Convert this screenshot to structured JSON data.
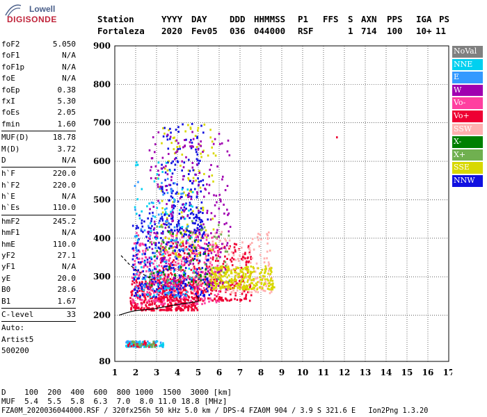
{
  "logo": {
    "top": "Lowell",
    "bottom": "DIGISONDE"
  },
  "header": {
    "labels": [
      "Station",
      "YYYY",
      "DAY",
      "DDD",
      "HHMMSS",
      "P1",
      "FFS",
      "S",
      "AXN",
      "PPS",
      "IGA",
      "PS"
    ],
    "values": [
      "Fortaleza",
      "2020",
      "Fev05",
      "036",
      "044000",
      "RSF",
      "",
      "1",
      "714",
      "100",
      "10+",
      "11"
    ]
  },
  "params": {
    "group1": [
      {
        "k": "foF2",
        "v": "5.050"
      },
      {
        "k": "foF1",
        "v": "N/A"
      },
      {
        "k": "foF1p",
        "v": "N/A"
      },
      {
        "k": "foE",
        "v": "N/A"
      },
      {
        "k": "foEp",
        "v": "0.38"
      },
      {
        "k": "fxI",
        "v": "5.30"
      },
      {
        "k": "foEs",
        "v": "2.05"
      },
      {
        "k": "fmin",
        "v": "1.60"
      }
    ],
    "group2": [
      {
        "k": "MUF(D)",
        "v": "18.78"
      },
      {
        "k": "M(D)",
        "v": "3.72"
      },
      {
        "k": "D",
        "v": "N/A"
      }
    ],
    "group3": [
      {
        "k": "h`F",
        "v": "220.0"
      },
      {
        "k": "h`F2",
        "v": "220.0"
      },
      {
        "k": "h`E",
        "v": "N/A"
      },
      {
        "k": "h`Es",
        "v": "110.0"
      }
    ],
    "group4": [
      {
        "k": "hmF2",
        "v": "245.2"
      },
      {
        "k": "hmF1",
        "v": "N/A"
      },
      {
        "k": "hmE",
        "v": "110.0"
      },
      {
        "k": "yF2",
        "v": "27.1"
      },
      {
        "k": "yF1",
        "v": "N/A"
      },
      {
        "k": "yE",
        "v": "20.0"
      },
      {
        "k": "B0",
        "v": "28.6"
      },
      {
        "k": "B1",
        "v": "1.67"
      }
    ],
    "group5": [
      {
        "k": "C-level",
        "v": "33"
      }
    ],
    "auto": [
      "Auto:",
      "Artist5",
      "500200"
    ]
  },
  "legend": [
    {
      "label": "NoVal",
      "color": "#808080"
    },
    {
      "label": "NNE",
      "color": "#00d0f0"
    },
    {
      "label": "E",
      "color": "#3399ff"
    },
    {
      "label": "W",
      "color": "#a000b0"
    },
    {
      "label": "Vo-",
      "color": "#ff3fa0"
    },
    {
      "label": "Vo+",
      "color": "#ee0033"
    },
    {
      "label": "SSW",
      "color": "#ffb0b0"
    },
    {
      "label": "X-",
      "color": "#008000"
    },
    {
      "label": "X+",
      "color": "#70b050"
    },
    {
      "label": "SSE",
      "color": "#d8d800"
    },
    {
      "label": "NNW",
      "color": "#1010e0"
    }
  ],
  "footer": {
    "d_line": "D    100  200  400  600  800 1000  1500  3000 [km]",
    "muf_line": "MUF  5.4  5.5  5.8  6.3  7.0  8.0 11.0 18.8 [MHz]",
    "file_line": "FZA0M_2020036044000.RSF / 320fx256h 50 kHz 5.0 km / DPS-4 FZA0M 904 / 3.9 S 321.6 E   Ion2Png 1.3.20"
  },
  "chart_data": {
    "type": "scatter",
    "title": "",
    "xlabel": "",
    "ylabel": "",
    "xlim": [
      1,
      17
    ],
    "ylim": [
      80,
      900
    ],
    "xticks": [
      1,
      2,
      3,
      4,
      5,
      6,
      7,
      8,
      9,
      10,
      11,
      12,
      13,
      14,
      15,
      16,
      17
    ],
    "yticks": [
      80,
      200,
      300,
      400,
      500,
      600,
      700,
      800,
      900
    ],
    "grid": true,
    "legend_position": "right",
    "clusters": [
      {
        "series": "Vo+",
        "x": [
          1.7,
          5.0
        ],
        "y": [
          215,
          300
        ],
        "count": 420
      },
      {
        "series": "Vo+",
        "x": [
          3.0,
          7.5
        ],
        "y": [
          240,
          390
        ],
        "count": 380
      },
      {
        "series": "Vo-",
        "x": [
          1.8,
          6.0
        ],
        "y": [
          230,
          420
        ],
        "count": 320
      },
      {
        "series": "SSW",
        "x": [
          3.5,
          8.5
        ],
        "y": [
          260,
          420
        ],
        "count": 220
      },
      {
        "series": "SSE",
        "x": [
          5.5,
          8.6
        ],
        "y": [
          270,
          330
        ],
        "count": 260
      },
      {
        "series": "SSE",
        "x": [
          3.0,
          5.8
        ],
        "y": [
          350,
          700
        ],
        "count": 120
      },
      {
        "series": "NNW",
        "x": [
          1.8,
          5.5
        ],
        "y": [
          250,
          470
        ],
        "count": 300
      },
      {
        "series": "NNW",
        "x": [
          3.2,
          5.2
        ],
        "y": [
          420,
          700
        ],
        "count": 160
      },
      {
        "series": "W",
        "x": [
          2.5,
          6.5
        ],
        "y": [
          270,
          680
        ],
        "count": 260
      },
      {
        "series": "NNE",
        "x": [
          1.9,
          4.8
        ],
        "y": [
          250,
          600
        ],
        "count": 90
      },
      {
        "series": "E",
        "x": [
          1.9,
          4.5
        ],
        "y": [
          250,
          560
        ],
        "count": 80
      },
      {
        "series": "X+",
        "x": [
          2.5,
          6.5
        ],
        "y": [
          280,
          450
        ],
        "count": 60
      },
      {
        "series": "X-",
        "x": [
          2.5,
          5.5
        ],
        "y": [
          280,
          420
        ],
        "count": 40
      },
      {
        "series": "E",
        "x": [
          1.5,
          3.3
        ],
        "y": [
          120,
          135
        ],
        "count": 60
      },
      {
        "series": "NNE",
        "x": [
          1.5,
          3.3
        ],
        "y": [
          120,
          135
        ],
        "count": 40
      },
      {
        "series": "Vo+",
        "x": [
          1.6,
          3.0
        ],
        "y": [
          120,
          135
        ],
        "count": 30
      },
      {
        "series": "X+",
        "x": [
          1.6,
          3.0
        ],
        "y": [
          120,
          135
        ],
        "count": 20
      }
    ],
    "points": [
      {
        "series": "Vo+",
        "x": 11.6,
        "y": 665
      }
    ],
    "trace_solid": {
      "x": [
        1.2,
        1.6,
        2.0,
        2.4,
        2.8,
        3.2,
        3.6,
        4.0,
        4.4,
        4.8,
        5.0,
        5.0,
        4.9
      ],
      "y": [
        200,
        207,
        212,
        214,
        216,
        220,
        224,
        228,
        231,
        234,
        236,
        245,
        252
      ]
    },
    "trace_dashed": {
      "x": [
        1.3,
        1.7,
        2.0,
        2.4,
        2.8
      ],
      "y": [
        355,
        332,
        318,
        305,
        292
      ]
    }
  }
}
